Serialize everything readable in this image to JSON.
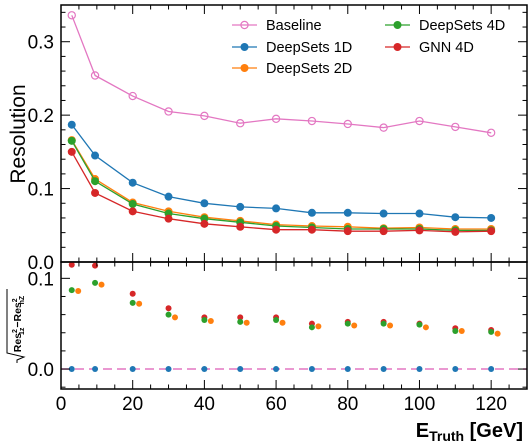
{
  "chart_data": {
    "type": "line",
    "x": [
      3,
      9.5,
      20,
      30,
      40,
      50,
      60,
      70,
      80,
      90,
      100,
      110,
      120
    ],
    "top": {
      "ylabel": "Resolution",
      "ylim": [
        0,
        0.35
      ],
      "yticks": [
        "0.0",
        "0.1",
        "0.2",
        "0.3"
      ],
      "legend_position": "top-right",
      "series": [
        {
          "name": "Baseline",
          "color": "#e377c2",
          "marker": "open-circle",
          "values": [
            0.336,
            0.254,
            0.226,
            0.205,
            0.199,
            0.189,
            0.195,
            0.192,
            0.188,
            0.183,
            0.192,
            0.184,
            0.176
          ]
        },
        {
          "name": "DeepSets 1D",
          "color": "#1f77b4",
          "marker": "filled-circle",
          "values": [
            0.187,
            0.145,
            0.108,
            0.089,
            0.08,
            0.075,
            0.073,
            0.067,
            0.067,
            0.066,
            0.066,
            0.061,
            0.06
          ]
        },
        {
          "name": "DeepSets 2D",
          "color": "#ff7f0e",
          "marker": "filled-circle",
          "values": [
            0.166,
            0.113,
            0.081,
            0.069,
            0.061,
            0.056,
            0.051,
            0.049,
            0.048,
            0.046,
            0.047,
            0.045,
            0.045
          ]
        },
        {
          "name": "DeepSets 4D",
          "color": "#2ca02c",
          "marker": "filled-circle",
          "values": [
            0.165,
            0.11,
            0.079,
            0.066,
            0.059,
            0.054,
            0.049,
            0.047,
            0.045,
            0.045,
            0.045,
            0.043,
            0.043
          ]
        },
        {
          "name": "GNN 4D",
          "color": "#d62728",
          "marker": "filled-circle",
          "values": [
            0.15,
            0.094,
            0.069,
            0.059,
            0.052,
            0.048,
            0.044,
            0.044,
            0.042,
            0.042,
            0.043,
            0.041,
            0.042
          ]
        }
      ]
    },
    "bottom": {
      "ylabel": "√ Res²_1z − Res²_nZ",
      "ylim": [
        -0.022,
        0.118
      ],
      "yticks": [
        "0.0",
        "0.1"
      ],
      "reference_line": {
        "y": 0,
        "color": "#e377c2",
        "style": "dashed"
      },
      "series": [
        {
          "name": "DeepSets 1D",
          "color": "#1f77b4",
          "x_offset": 0,
          "values": [
            0,
            0,
            0,
            0,
            0,
            0,
            0,
            0,
            0,
            0,
            0,
            0,
            0
          ]
        },
        {
          "name": "GNN 4D",
          "color": "#d62728",
          "x_offset": 0,
          "values": [
            0.115,
            0.114,
            0.083,
            0.067,
            0.057,
            0.057,
            0.057,
            0.05,
            0.052,
            0.052,
            0.05,
            0.045,
            0.043
          ]
        },
        {
          "name": "DeepSets 4D",
          "color": "#2ca02c",
          "x_offset": 0,
          "values": [
            0.087,
            0.095,
            0.073,
            0.06,
            0.054,
            0.052,
            0.054,
            0.046,
            0.05,
            0.05,
            0.049,
            0.042,
            0.041
          ]
        },
        {
          "name": "DeepSets 2D",
          "color": "#ff7f0e",
          "x_offset": 1.8,
          "values": [
            0.086,
            0.093,
            0.072,
            0.057,
            0.053,
            0.051,
            0.051,
            0.047,
            0.048,
            0.048,
            0.046,
            0.042,
            0.039
          ]
        }
      ]
    },
    "xaxis": {
      "xlim": [
        0,
        130
      ],
      "xticks": [
        0,
        20,
        40,
        60,
        80,
        100,
        120
      ],
      "xlabel_main": "E",
      "xlabel_sub": "Truth",
      "xlabel_unit": " [GeV]"
    }
  }
}
